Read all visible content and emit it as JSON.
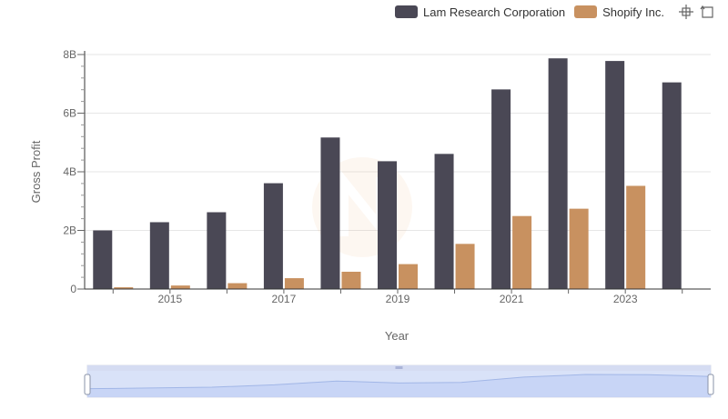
{
  "legend": [
    {
      "name": "Lam Research Corporation",
      "color": "#4a4855"
    },
    {
      "name": "Shopify Inc.",
      "color": "#c89160"
    }
  ],
  "toolbar": {
    "icons": [
      "zoom-select-icon",
      "zoom-reset-icon"
    ]
  },
  "chart_data": {
    "type": "bar",
    "xlabel": "Year",
    "ylabel": "Gross Profit",
    "x": [
      2014,
      2015,
      2016,
      2017,
      2018,
      2019,
      2020,
      2021,
      2022,
      2023,
      2024
    ],
    "x_tick_labels": [
      "2015",
      "2017",
      "2019",
      "2021",
      "2023"
    ],
    "y_tick_labels": [
      "0",
      "2B",
      "4B",
      "6B",
      "8B"
    ],
    "ylim": [
      0,
      8000000000
    ],
    "grid": true,
    "legend_position": "top-right",
    "series": [
      {
        "name": "Lam Research Corporation",
        "color": "#4a4855",
        "values": [
          2000000000,
          2280000000,
          2620000000,
          3610000000,
          5170000000,
          4360000000,
          4610000000,
          6810000000,
          7870000000,
          7780000000,
          7050000000
        ]
      },
      {
        "name": "Shopify Inc.",
        "color": "#c89160",
        "values": [
          60000000,
          120000000,
          200000000,
          370000000,
          590000000,
          850000000,
          1540000000,
          2490000000,
          2740000000,
          3520000000,
          null
        ]
      }
    ]
  }
}
